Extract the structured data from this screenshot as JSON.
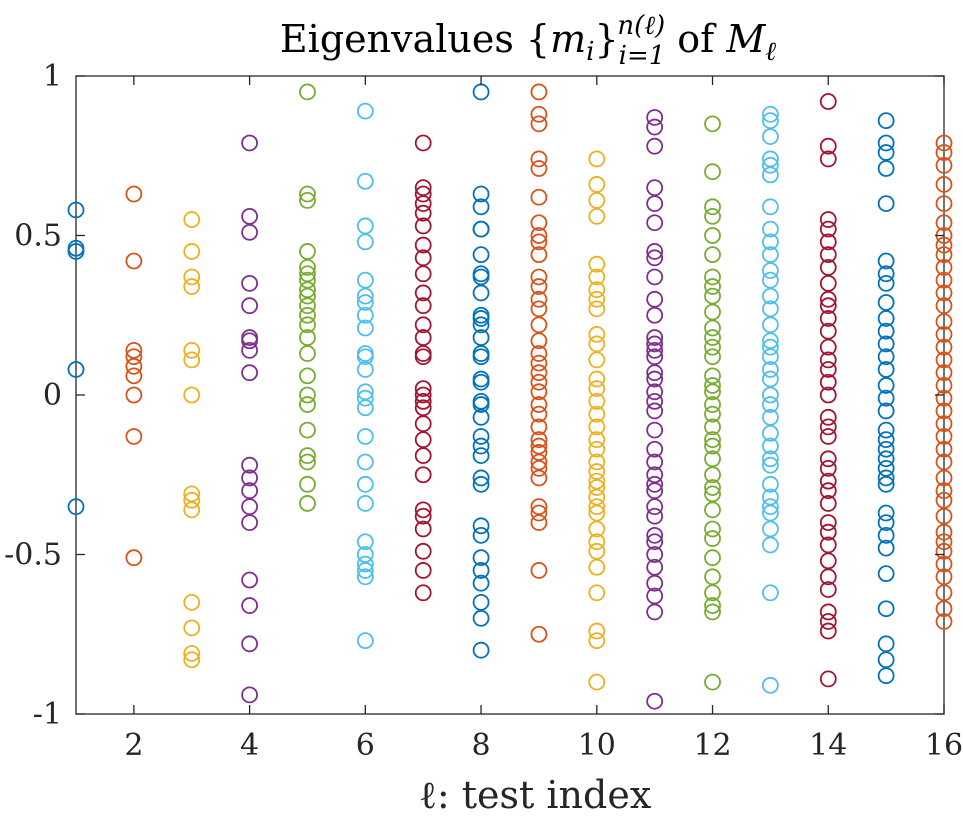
{
  "chart_data": {
    "type": "scatter",
    "title": {
      "prefix": "Eigenvalues ",
      "set_open": "{",
      "set_var": "m",
      "set_sub": "i",
      "set_close": "}",
      "sub": "i=1",
      "sup": "n(ℓ)",
      "middle": " of ",
      "matrix": "M",
      "matrix_sub": "ℓ"
    },
    "xlabel": "ℓ: test index",
    "ylabel": "",
    "xlim": [
      1,
      16
    ],
    "ylim": [
      -1,
      1
    ],
    "xticks": [
      2,
      4,
      6,
      8,
      10,
      12,
      14,
      16
    ],
    "yticks": [
      -1,
      -0.5,
      0,
      0.5,
      1
    ],
    "ytick_labels": [
      "-1",
      "-0.5",
      "0",
      "0.5",
      "1"
    ],
    "grid": false,
    "colors": [
      "#0072BD",
      "#D95319",
      "#EDB120",
      "#7E2F8E",
      "#77AC30",
      "#4DBEEE",
      "#A2142F"
    ],
    "series": [
      {
        "x": 1,
        "color": "#0072BD",
        "values": [
          0.58,
          0.46,
          0.45,
          0.08,
          -0.35
        ]
      },
      {
        "x": 2,
        "color": "#D95319",
        "values": [
          0.63,
          0.42,
          0.14,
          0.12,
          0.09,
          0.06,
          0.0,
          -0.13,
          -0.51
        ]
      },
      {
        "x": 3,
        "color": "#EDB120",
        "values": [
          0.55,
          0.45,
          0.37,
          0.34,
          0.14,
          0.11,
          0.0,
          -0.31,
          -0.33,
          -0.36,
          -0.65,
          -0.73,
          -0.81,
          -0.83
        ]
      },
      {
        "x": 4,
        "color": "#7E2F8E",
        "values": [
          0.79,
          0.56,
          0.51,
          0.35,
          0.28,
          0.18,
          0.17,
          0.14,
          0.07,
          -0.22,
          -0.26,
          -0.3,
          -0.35,
          -0.4,
          -0.58,
          -0.66,
          -0.78,
          -0.94
        ]
      },
      {
        "x": 5,
        "color": "#77AC30",
        "values": [
          0.95,
          0.63,
          0.61,
          0.45,
          0.4,
          0.38,
          0.36,
          0.33,
          0.31,
          0.28,
          0.25,
          0.22,
          0.18,
          0.13,
          0.06,
          0.0,
          -0.03,
          -0.11,
          -0.19,
          -0.21,
          -0.28,
          -0.34
        ]
      },
      {
        "x": 6,
        "color": "#4DBEEE",
        "values": [
          0.89,
          0.67,
          0.53,
          0.48,
          0.36,
          0.31,
          0.29,
          0.25,
          0.21,
          0.13,
          0.12,
          0.08,
          0.01,
          -0.01,
          -0.04,
          -0.13,
          -0.21,
          -0.28,
          -0.34,
          -0.46,
          -0.5,
          -0.53,
          -0.55,
          -0.57,
          -0.77
        ]
      },
      {
        "x": 7,
        "color": "#A2142F",
        "values": [
          0.79,
          0.65,
          0.63,
          0.6,
          0.57,
          0.53,
          0.47,
          0.43,
          0.38,
          0.32,
          0.28,
          0.22,
          0.18,
          0.13,
          0.12,
          0.02,
          0.0,
          -0.02,
          -0.04,
          -0.09,
          -0.14,
          -0.19,
          -0.25,
          -0.36,
          -0.38,
          -0.42,
          -0.49,
          -0.55,
          -0.62
        ]
      },
      {
        "x": 8,
        "color": "#0072BD",
        "values": [
          0.95,
          0.63,
          0.59,
          0.52,
          0.52,
          0.44,
          0.38,
          0.37,
          0.32,
          0.25,
          0.24,
          0.22,
          0.18,
          0.13,
          0.12,
          0.05,
          0.04,
          -0.02,
          -0.03,
          -0.07,
          -0.13,
          -0.16,
          -0.19,
          -0.26,
          -0.28,
          -0.41,
          -0.44,
          -0.51,
          -0.55,
          -0.59,
          -0.65,
          -0.7,
          -0.8
        ]
      },
      {
        "x": 9,
        "color": "#D95319",
        "values": [
          0.95,
          0.88,
          0.85,
          0.74,
          0.71,
          0.62,
          0.54,
          0.5,
          0.48,
          0.44,
          0.37,
          0.34,
          0.3,
          0.27,
          0.22,
          0.17,
          0.13,
          0.1,
          0.07,
          0.04,
          0.01,
          -0.03,
          -0.06,
          -0.1,
          -0.14,
          -0.16,
          -0.18,
          -0.21,
          -0.23,
          -0.26,
          -0.35,
          -0.37,
          -0.4,
          -0.55,
          -0.75
        ]
      },
      {
        "x": 10,
        "color": "#EDB120",
        "values": [
          0.74,
          0.66,
          0.61,
          0.56,
          0.41,
          0.37,
          0.33,
          0.3,
          0.27,
          0.19,
          0.16,
          0.11,
          0.05,
          0.02,
          -0.02,
          -0.06,
          -0.1,
          -0.14,
          -0.17,
          -0.21,
          -0.24,
          -0.27,
          -0.29,
          -0.32,
          -0.35,
          -0.37,
          -0.42,
          -0.46,
          -0.49,
          -0.54,
          -0.62,
          -0.74,
          -0.77,
          -0.9
        ]
      },
      {
        "x": 11,
        "color": "#7E2F8E",
        "values": [
          0.87,
          0.84,
          0.78,
          0.65,
          0.6,
          0.54,
          0.45,
          0.43,
          0.37,
          0.3,
          0.25,
          0.18,
          0.16,
          0.14,
          0.12,
          0.07,
          0.05,
          0.01,
          -0.02,
          -0.05,
          -0.11,
          -0.17,
          -0.21,
          -0.25,
          -0.28,
          -0.3,
          -0.35,
          -0.38,
          -0.44,
          -0.46,
          -0.5,
          -0.54,
          -0.59,
          -0.63,
          -0.68,
          -0.96
        ]
      },
      {
        "x": 12,
        "color": "#77AC30",
        "values": [
          0.85,
          0.7,
          0.59,
          0.56,
          0.5,
          0.44,
          0.37,
          0.34,
          0.31,
          0.26,
          0.21,
          0.18,
          0.15,
          0.12,
          0.06,
          0.03,
          0.01,
          -0.03,
          -0.06,
          -0.1,
          -0.14,
          -0.16,
          -0.2,
          -0.25,
          -0.29,
          -0.31,
          -0.36,
          -0.42,
          -0.45,
          -0.51,
          -0.57,
          -0.62,
          -0.66,
          -0.68,
          -0.9
        ]
      },
      {
        "x": 13,
        "color": "#4DBEEE",
        "values": [
          0.88,
          0.86,
          0.81,
          0.74,
          0.72,
          0.69,
          0.59,
          0.52,
          0.48,
          0.44,
          0.39,
          0.36,
          0.31,
          0.27,
          0.22,
          0.17,
          0.15,
          0.12,
          0.08,
          0.05,
          0.0,
          -0.03,
          -0.07,
          -0.12,
          -0.16,
          -0.2,
          -0.22,
          -0.28,
          -0.32,
          -0.35,
          -0.37,
          -0.42,
          -0.47,
          -0.62,
          -0.91
        ]
      },
      {
        "x": 14,
        "color": "#A2142F",
        "values": [
          0.92,
          0.78,
          0.74,
          0.55,
          0.52,
          0.48,
          0.44,
          0.4,
          0.35,
          0.3,
          0.28,
          0.24,
          0.2,
          0.15,
          0.11,
          0.08,
          0.04,
          0.0,
          -0.07,
          -0.1,
          -0.13,
          -0.2,
          -0.23,
          -0.27,
          -0.3,
          -0.34,
          -0.4,
          -0.43,
          -0.47,
          -0.52,
          -0.57,
          -0.61,
          -0.68,
          -0.71,
          -0.74,
          -0.89
        ]
      },
      {
        "x": 15,
        "color": "#0072BD",
        "values": [
          0.86,
          0.79,
          0.76,
          0.71,
          0.6,
          0.42,
          0.38,
          0.35,
          0.29,
          0.24,
          0.2,
          0.16,
          0.12,
          0.08,
          0.03,
          -0.01,
          -0.05,
          -0.11,
          -0.14,
          -0.17,
          -0.2,
          -0.23,
          -0.26,
          -0.28,
          -0.37,
          -0.4,
          -0.44,
          -0.48,
          -0.56,
          -0.67,
          -0.78,
          -0.83,
          -0.88
        ]
      },
      {
        "x": 16,
        "color": "#D95319",
        "values": [
          0.79,
          0.76,
          0.72,
          0.66,
          0.6,
          0.54,
          0.5,
          0.47,
          0.44,
          0.4,
          0.36,
          0.32,
          0.28,
          0.23,
          0.19,
          0.15,
          0.11,
          0.07,
          0.03,
          -0.01,
          -0.05,
          -0.09,
          -0.13,
          -0.17,
          -0.21,
          -0.26,
          -0.3,
          -0.33,
          -0.38,
          -0.43,
          -0.46,
          -0.49,
          -0.53,
          -0.57,
          -0.62,
          -0.67,
          -0.71
        ]
      }
    ]
  }
}
